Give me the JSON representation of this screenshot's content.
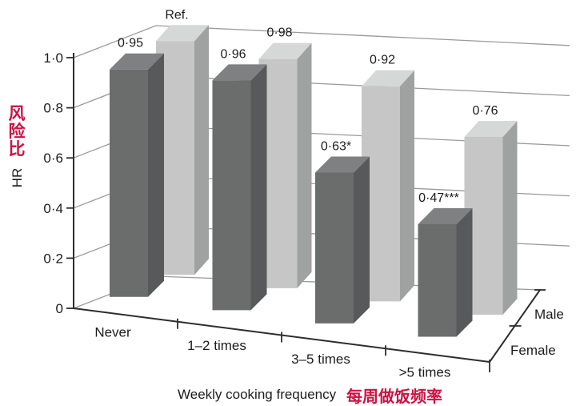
{
  "figure": {
    "background": "#ffffff"
  },
  "chart_data": {
    "type": "bar",
    "projection": "3d",
    "categories": [
      "Never",
      "1–2 times",
      "3–5 times",
      ">5 times"
    ],
    "series": [
      {
        "name": "Male",
        "row": "back",
        "values": [
          1.0,
          0.98,
          0.92,
          0.76
        ],
        "bar_labels": [
          "Ref.",
          "0·98",
          "0·92",
          "0·76"
        ],
        "colors": {
          "front": "#c5c6c5",
          "side": "#a0a2a1",
          "top": "#d6d8d7"
        }
      },
      {
        "name": "Female",
        "row": "front",
        "values": [
          0.95,
          0.96,
          0.63,
          0.47
        ],
        "bar_labels": [
          "0·95",
          "0·96",
          "0·63*",
          "0·47***"
        ],
        "colors": {
          "front": "#6b6d6c",
          "side": "#57595a",
          "top": "#7e8081"
        }
      }
    ],
    "xlabel": "Weekly cooking frequency",
    "xlabel_zh": "每周做饭频率",
    "ylabel": "HR",
    "ylabel_zh": "风险比",
    "ylim": [
      0,
      1.05
    ],
    "yticks": [
      {
        "label": "1·0",
        "value": 1.0
      },
      {
        "label": "0·8",
        "value": 0.8
      },
      {
        "label": "0·6",
        "value": 0.6
      },
      {
        "label": "0·4",
        "value": 0.4
      },
      {
        "label": "0·2",
        "value": 0.2
      },
      {
        "label": "0",
        "value": 0.0
      }
    ],
    "depth_axis_labels": [
      "Male",
      "Female"
    ],
    "grid": true,
    "legend_position": "depth-axis-right"
  },
  "colors": {
    "annotation_red": "#cb1243",
    "axis": "#2d2d2d",
    "grid": "#9a9a9a",
    "text": "#1c1c1c"
  }
}
